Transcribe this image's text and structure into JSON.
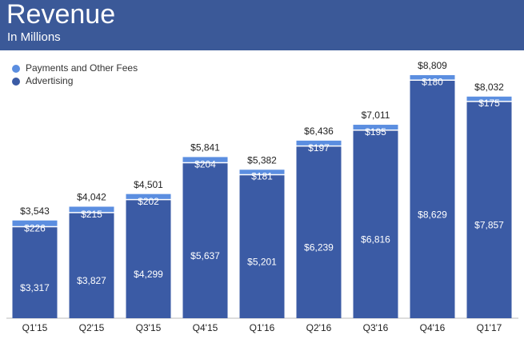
{
  "chart_data": {
    "type": "stacked-bar",
    "title": "Revenue",
    "subtitle": "In Millions",
    "categories": [
      "Q1'15",
      "Q2'15",
      "Q3'15",
      "Q4'15",
      "Q1'16",
      "Q2'16",
      "Q3'16",
      "Q4'16",
      "Q1'17"
    ],
    "series": [
      {
        "name": "Advertising",
        "color": "#3b5ba5",
        "values": [
          3317,
          3827,
          4299,
          5637,
          5201,
          6239,
          6816,
          8629,
          7857
        ],
        "value_labels": [
          "$3,317",
          "$3,827",
          "$4,299",
          "$5,637",
          "$5,201",
          "$6,239",
          "$6,816",
          "$8,629",
          "$7,857"
        ]
      },
      {
        "name": "Payments and Other Fees",
        "color": "#5b8ee0",
        "values": [
          226,
          215,
          202,
          204,
          181,
          197,
          195,
          180,
          175
        ],
        "value_labels": [
          "$226",
          "$215",
          "$202",
          "$204",
          "$181",
          "$197",
          "$195",
          "$180",
          "$175"
        ]
      }
    ],
    "total_labels": [
      "$3,543",
      "$4,042",
      "$4,501",
      "$5,841",
      "$5,382",
      "$6,436",
      "$7,011",
      "$8,809",
      "$8,032"
    ],
    "ylim": [
      0,
      9000
    ]
  }
}
